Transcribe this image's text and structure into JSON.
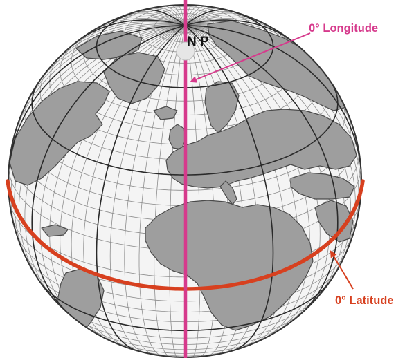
{
  "diagram": {
    "pole_label": "N P",
    "longitude_label": "0° Longitude",
    "latitude_label": "0° Latitude"
  },
  "colors": {
    "ocean": "#f4f4f4",
    "land": "#9e9e9e",
    "land_border": "#4a4a4a",
    "fine_grid": "#8c8c8c",
    "major_grid": "#2a2a2a",
    "globe_outline": "#333333",
    "prime_meridian": "#d63a8c",
    "equator": "#d7401f",
    "longitude_label": "#d63a8c",
    "latitude_label": "#d7401f"
  }
}
